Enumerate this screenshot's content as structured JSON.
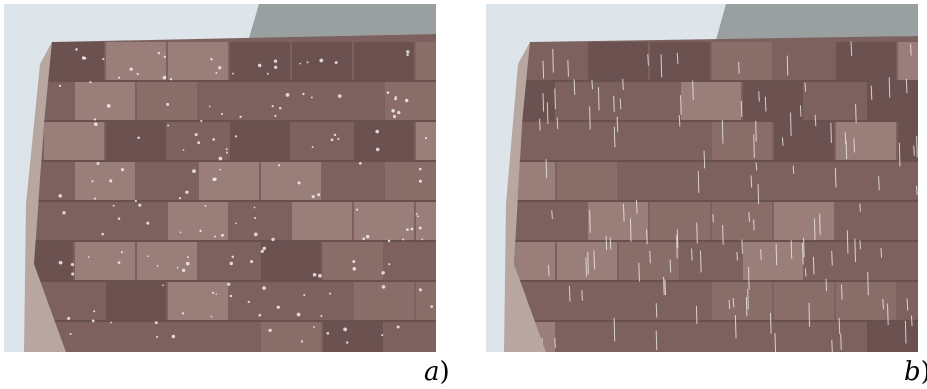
{
  "figure": {
    "panels": [
      {
        "letter": "a",
        "paren": ")",
        "rain_style": "drops"
      },
      {
        "letter": "b",
        "paren": ")",
        "rain_style": "streaks"
      }
    ],
    "colors": {
      "sky": "#dde4ea",
      "wall_base": "#7c615e",
      "wall_light": "#9b807a",
      "wall_dark": "#6a5150",
      "mortar": "#5a4443",
      "rain": "#f2eee8"
    }
  }
}
